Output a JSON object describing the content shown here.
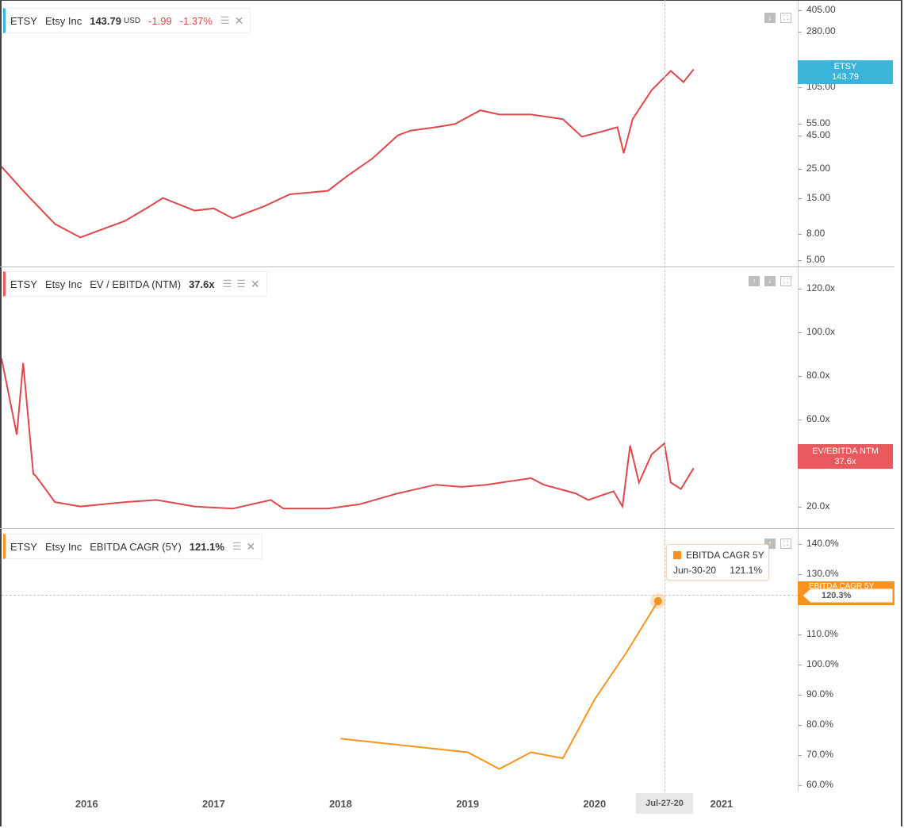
{
  "symbol": "ETSY",
  "company": "Etsy Inc",
  "price_pane": {
    "price": "143.79",
    "currency": "USD",
    "change": "-1.99",
    "change_pct": "-1.37%",
    "tag_name": "ETSY",
    "tag_value": "143.79",
    "tag_color": "#3ab4d9",
    "ticks": [
      "405.00",
      "280.00",
      "150.00",
      "105.00",
      "55.00",
      "45.00",
      "25.00",
      "15.00",
      "8.00",
      "5.00"
    ]
  },
  "ev_pane": {
    "metric": "EV / EBITDA (NTM)",
    "value": "37.6x",
    "tag_name": "EV/EBITDA NTM",
    "tag_value": "37.6x",
    "tag_color": "#e8585d",
    "ticks": [
      "120.0x",
      "100.0x",
      "80.0x",
      "60.0x",
      "20.0x"
    ]
  },
  "cagr_pane": {
    "metric": "EBITDA CAGR (5Y)",
    "value": "121.1%",
    "tag_name": "EBITDA CAGR 5Y",
    "tag_value": "120.3%",
    "tag_color": "#f7931e",
    "ticks": [
      "140.0%",
      "130.0%",
      "110.0%",
      "100.0%",
      "90.0%",
      "80.0%",
      "70.0%",
      "60.0%"
    ],
    "tooltip": {
      "title": "EBITDA CAGR 5Y",
      "date": "Jun-30-20",
      "value": "121.1%"
    }
  },
  "x_axis": {
    "labels": [
      "2016",
      "2017",
      "2018",
      "2019",
      "2020",
      "2021"
    ],
    "crosshair_label": "Jul-27-20"
  },
  "colors": {
    "price_line": "#e0474c",
    "ev_line": "#e0474c",
    "cagr_line": "#f7931e"
  },
  "chart_data": [
    {
      "type": "line",
      "title": "",
      "y_scale": "log",
      "ylim": [
        4.5,
        480
      ],
      "series": [
        {
          "name": "ETSY",
          "x": [
            2015.33,
            2015.5,
            2015.75,
            2015.95,
            2016.1,
            2016.3,
            2016.5,
            2016.6,
            2016.85,
            2017.0,
            2017.15,
            2017.4,
            2017.6,
            2017.9,
            2018.05,
            2018.25,
            2018.45,
            2018.55,
            2018.75,
            2018.9,
            2019.1,
            2019.25,
            2019.5,
            2019.75,
            2019.9,
            2020.05,
            2020.18,
            2020.23,
            2020.3,
            2020.45,
            2020.6,
            2020.7,
            2020.78
          ],
          "y": [
            26,
            17,
            9.5,
            7.5,
            8.5,
            10,
            13,
            15,
            12,
            12.5,
            10.5,
            13,
            16,
            17,
            22,
            30,
            45,
            49,
            52,
            55,
            70,
            65,
            65,
            60,
            44,
            48,
            52,
            33,
            60,
            100,
            140,
            115,
            143.79
          ]
        }
      ]
    },
    {
      "type": "line",
      "title": "",
      "ylim": [
        10,
        130
      ],
      "series": [
        {
          "name": "",
          "x": [
            2015.33,
            2015.45,
            2015.5,
            2015.58,
            2015.6,
            2015.75,
            2015.95,
            2016.3,
            2016.55,
            2016.85,
            2017.15,
            2017.45,
            2017.55,
            2017.9,
            2018.15,
            2018.45,
            2018.75,
            2018.95,
            2019.15,
            2019.5,
            2019.6,
            2019.85,
            2019.95,
            2020.15,
            2020.22,
            2020.28,
            2020.35,
            2020.45,
            2020.55,
            2020.6,
            2020.68,
            2020.78
          ],
          "y": [
            88,
            53,
            86,
            35,
            34,
            22,
            20,
            22,
            23,
            20,
            19,
            23,
            19,
            19,
            21,
            26,
            30,
            29,
            30,
            33,
            30,
            26,
            23,
            27,
            20,
            48,
            31,
            44,
            49,
            31,
            28,
            37.6
          ]
        }
      ]
    },
    {
      "type": "line",
      "title": "",
      "ylim": [
        58,
        145
      ],
      "series": [
        {
          "name": "EBITDA CAGR 5Y",
          "x": [
            2018.0,
            2019.0,
            2019.25,
            2019.5,
            2019.75,
            2020.0,
            2020.25,
            2020.5
          ],
          "y": [
            75.5,
            71,
            65.5,
            71,
            69,
            88.5,
            104,
            121.1
          ]
        }
      ]
    }
  ]
}
